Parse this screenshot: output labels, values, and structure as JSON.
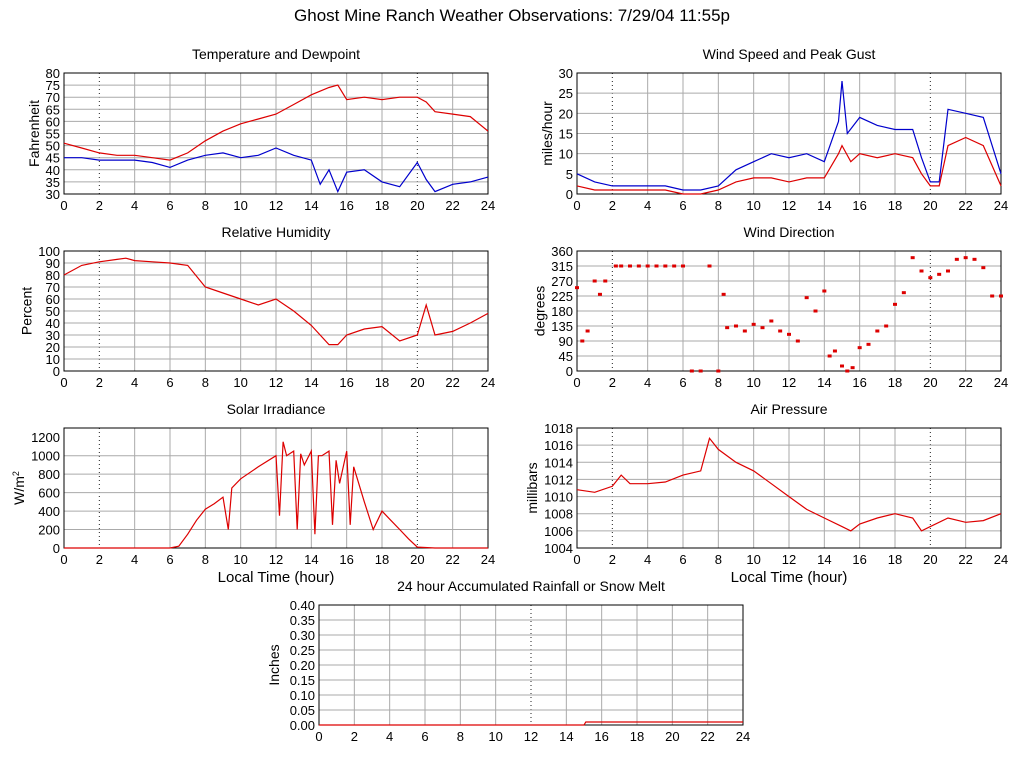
{
  "title": "Ghost Mine Ranch Weather Observations: 7/29/04 11:55p",
  "colors": {
    "series_red": "#dd0000",
    "series_blue": "#0000cc",
    "grid": "#aaaaaa",
    "axes": "#000000"
  },
  "chart_data": [
    {
      "id": "temperature",
      "type": "line",
      "title": "Temperature and Dewpoint",
      "ylabel": "Fahrenheit",
      "xlabel": "",
      "xlim": [
        0,
        24
      ],
      "ylim": [
        30,
        80
      ],
      "xticks": [
        0,
        2,
        4,
        6,
        8,
        10,
        12,
        14,
        16,
        18,
        20,
        22,
        24
      ],
      "yticks": [
        30,
        35,
        40,
        45,
        50,
        55,
        60,
        65,
        70,
        75,
        80
      ],
      "series": [
        {
          "name": "Temperature",
          "color": "red",
          "x": [
            0,
            1,
            2,
            3,
            4,
            5,
            6,
            7,
            8,
            9,
            10,
            11,
            12,
            13,
            14,
            15,
            15.5,
            16,
            17,
            18,
            19,
            20,
            20.5,
            21,
            22,
            23,
            24
          ],
          "y": [
            51,
            49,
            47,
            46,
            46,
            45,
            44,
            47,
            52,
            56,
            59,
            61,
            63,
            67,
            71,
            74,
            75,
            69,
            70,
            69,
            70,
            70,
            68,
            64,
            63,
            62,
            56
          ]
        },
        {
          "name": "Dewpoint",
          "color": "blue",
          "x": [
            0,
            1,
            2,
            3,
            4,
            5,
            6,
            7,
            8,
            9,
            10,
            11,
            12,
            13,
            14,
            14.5,
            15,
            15.5,
            16,
            17,
            18,
            19,
            20,
            20.5,
            21,
            22,
            23,
            24
          ],
          "y": [
            45,
            45,
            44,
            44,
            44,
            43,
            41,
            44,
            46,
            47,
            45,
            46,
            49,
            46,
            44,
            34,
            40,
            31,
            39,
            40,
            35,
            33,
            43,
            36,
            31,
            34,
            35,
            37
          ]
        }
      ]
    },
    {
      "id": "wind_speed",
      "type": "line",
      "title": "Wind Speed and Peak Gust",
      "ylabel": "miles/hour",
      "xlabel": "",
      "xlim": [
        0,
        24
      ],
      "ylim": [
        0,
        30
      ],
      "xticks": [
        0,
        2,
        4,
        6,
        8,
        10,
        12,
        14,
        16,
        18,
        20,
        22,
        24
      ],
      "yticks": [
        0,
        5,
        10,
        15,
        20,
        25,
        30
      ],
      "series": [
        {
          "name": "Peak Gust",
          "color": "blue",
          "x": [
            0,
            1,
            2,
            3,
            4,
            5,
            6,
            7,
            8,
            9,
            10,
            11,
            12,
            13,
            14,
            14.8,
            15,
            15.3,
            16,
            17,
            18,
            19,
            19.5,
            20,
            20.5,
            21,
            22,
            23,
            24
          ],
          "y": [
            5,
            3,
            2,
            2,
            2,
            2,
            1,
            1,
            2,
            6,
            8,
            10,
            9,
            10,
            8,
            18,
            28,
            15,
            19,
            17,
            16,
            16,
            9,
            3,
            3,
            21,
            20,
            19,
            5
          ]
        },
        {
          "name": "Wind Speed",
          "color": "red",
          "x": [
            0,
            1,
            2,
            3,
            4,
            5,
            6,
            7,
            8,
            9,
            10,
            11,
            12,
            13,
            14,
            14.8,
            15,
            15.5,
            16,
            17,
            18,
            19,
            19.5,
            20,
            20.5,
            21,
            22,
            23,
            24
          ],
          "y": [
            2,
            1,
            1,
            1,
            1,
            1,
            0,
            0,
            1,
            3,
            4,
            4,
            3,
            4,
            4,
            10,
            12,
            8,
            10,
            9,
            10,
            9,
            5,
            2,
            2,
            12,
            14,
            12,
            2
          ]
        }
      ]
    },
    {
      "id": "humidity",
      "type": "line",
      "title": "Relative Humidity",
      "ylabel": "Percent",
      "xlabel": "",
      "xlim": [
        0,
        24
      ],
      "ylim": [
        0,
        100
      ],
      "xticks": [
        0,
        2,
        4,
        6,
        8,
        10,
        12,
        14,
        16,
        18,
        20,
        22,
        24
      ],
      "yticks": [
        0,
        10,
        20,
        30,
        40,
        50,
        60,
        70,
        80,
        90,
        100
      ],
      "series": [
        {
          "name": "Relative Humidity",
          "color": "red",
          "x": [
            0,
            1,
            2,
            3,
            3.5,
            4,
            5,
            6,
            7,
            8,
            9,
            10,
            11,
            12,
            13,
            14,
            15,
            15.5,
            16,
            17,
            18,
            19,
            20,
            20.5,
            21,
            22,
            23,
            24
          ],
          "y": [
            80,
            88,
            91,
            93,
            94,
            92,
            91,
            90,
            88,
            70,
            65,
            60,
            55,
            60,
            50,
            38,
            22,
            22,
            30,
            35,
            37,
            25,
            30,
            55,
            30,
            33,
            40,
            48
          ]
        }
      ]
    },
    {
      "id": "wind_direction",
      "type": "scatter",
      "title": "Wind Direction",
      "ylabel": "degrees",
      "xlabel": "",
      "xlim": [
        0,
        24
      ],
      "ylim": [
        0,
        360
      ],
      "xticks": [
        0,
        2,
        4,
        6,
        8,
        10,
        12,
        14,
        16,
        18,
        20,
        22,
        24
      ],
      "yticks": [
        0,
        45,
        90,
        135,
        180,
        225,
        270,
        315,
        360
      ],
      "series": [
        {
          "name": "Wind Direction",
          "color": "red",
          "x": [
            0,
            0.3,
            0.6,
            1,
            1.3,
            1.6,
            2.2,
            2.5,
            3,
            3.5,
            4,
            4.5,
            5,
            5.5,
            6,
            6.5,
            7,
            7.5,
            8,
            8.3,
            8.5,
            9,
            9.5,
            10,
            10.5,
            11,
            11.5,
            12,
            12.5,
            13,
            13.5,
            14,
            14.3,
            14.6,
            15,
            15.3,
            15.6,
            16,
            16.5,
            17,
            17.5,
            18,
            18.5,
            19,
            19.5,
            20,
            20.5,
            21,
            21.5,
            22,
            22.5,
            23,
            23.5,
            24
          ],
          "y": [
            250,
            90,
            120,
            270,
            230,
            270,
            315,
            315,
            315,
            315,
            315,
            315,
            315,
            315,
            315,
            0,
            0,
            315,
            0,
            230,
            130,
            135,
            120,
            140,
            130,
            150,
            120,
            110,
            90,
            220,
            180,
            240,
            45,
            60,
            15,
            0,
            10,
            70,
            80,
            120,
            135,
            200,
            235,
            340,
            300,
            280,
            290,
            300,
            335,
            340,
            335,
            310,
            225,
            225
          ]
        }
      ]
    },
    {
      "id": "solar",
      "type": "line",
      "title": "Solar Irradiance",
      "ylabel": "W/m2",
      "ylabel_main": "W/m",
      "ylabel_sup": "2",
      "xlabel": "Local Time (hour)",
      "xlim": [
        0,
        24
      ],
      "ylim": [
        0,
        1300
      ],
      "xticks": [
        0,
        2,
        4,
        6,
        8,
        10,
        12,
        14,
        16,
        18,
        20,
        22,
        24
      ],
      "yticks": [
        0,
        200,
        400,
        600,
        800,
        1000,
        1200
      ],
      "series": [
        {
          "name": "Solar Irradiance",
          "color": "red",
          "x": [
            0,
            6,
            6.5,
            7,
            7.5,
            8,
            8.5,
            9,
            9.3,
            9.5,
            10,
            11,
            12,
            12.2,
            12.4,
            12.6,
            13,
            13.2,
            13.4,
            13.6,
            14,
            14.2,
            14.4,
            14.6,
            15,
            15.2,
            15.4,
            15.6,
            16,
            16.2,
            16.4,
            17,
            17.5,
            18,
            18.5,
            19,
            19.5,
            20,
            21,
            24
          ],
          "y": [
            0,
            0,
            20,
            150,
            300,
            420,
            480,
            550,
            200,
            650,
            750,
            880,
            1000,
            350,
            1150,
            1000,
            1050,
            200,
            1020,
            900,
            1050,
            150,
            1000,
            1000,
            1050,
            250,
            950,
            700,
            1050,
            250,
            880,
            500,
            200,
            400,
            300,
            200,
            100,
            10,
            0,
            0
          ]
        }
      ]
    },
    {
      "id": "pressure",
      "type": "line",
      "title": "Air Pressure",
      "ylabel": "millibars",
      "xlabel": "Local Time (hour)",
      "xlim": [
        0,
        24
      ],
      "ylim": [
        1004,
        1018
      ],
      "xticks": [
        0,
        2,
        4,
        6,
        8,
        10,
        12,
        14,
        16,
        18,
        20,
        22,
        24
      ],
      "yticks": [
        1004,
        1006,
        1008,
        1010,
        1012,
        1014,
        1016,
        1018
      ],
      "series": [
        {
          "name": "Air Pressure",
          "color": "red",
          "x": [
            0,
            1,
            2,
            2.5,
            3,
            4,
            5,
            6,
            7,
            7.5,
            8,
            9,
            10,
            11,
            12,
            13,
            14,
            15,
            15.5,
            16,
            17,
            18,
            19,
            19.5,
            20,
            21,
            22,
            23,
            24
          ],
          "y": [
            1010.8,
            1010.5,
            1011.2,
            1012.5,
            1011.5,
            1011.5,
            1011.7,
            1012.5,
            1013,
            1016.8,
            1015.5,
            1014,
            1013,
            1011.5,
            1010,
            1008.5,
            1007.5,
            1006.5,
            1006,
            1006.8,
            1007.5,
            1008,
            1007.5,
            1006,
            1006.5,
            1007.5,
            1007,
            1007.2,
            1008
          ]
        }
      ]
    },
    {
      "id": "rainfall",
      "type": "line",
      "title": "24 hour Accumulated Rainfall or Snow Melt",
      "ylabel": "Inches",
      "xlabel": "",
      "xlim": [
        0,
        24
      ],
      "ylim": [
        0,
        0.4
      ],
      "xticks": [
        0,
        2,
        4,
        6,
        8,
        10,
        12,
        14,
        16,
        18,
        20,
        22,
        24
      ],
      "yticks": [
        0.0,
        0.05,
        0.1,
        0.15,
        0.2,
        0.25,
        0.3,
        0.35,
        0.4
      ],
      "ytick_labels": [
        "0.00",
        "0.05",
        "0.10",
        "0.15",
        "0.20",
        "0.25",
        "0.30",
        "0.35",
        "0.40"
      ],
      "series": [
        {
          "name": "Rainfall",
          "color": "red",
          "x": [
            0,
            15,
            15.1,
            24
          ],
          "y": [
            0,
            0,
            0.01,
            0.01
          ]
        }
      ]
    }
  ]
}
